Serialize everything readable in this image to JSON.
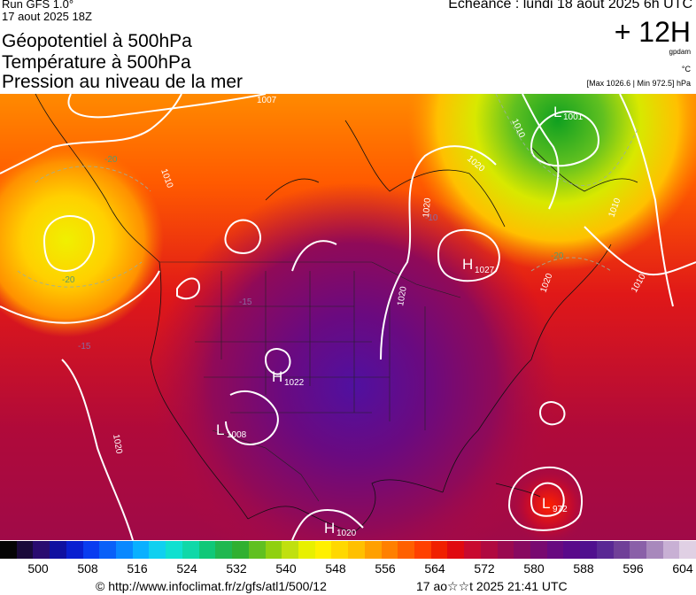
{
  "header": {
    "run": "Run GFS 1.0°",
    "run_date": "17 aout 2025 18Z",
    "title_line1": "Géopotentiel à 500hPa",
    "title_line2": "Température à 500hPa",
    "title_line3": "Pression au niveau de la mer",
    "echeance": "Echéance : lundi 18 aout 2025 6h UTC",
    "lead_time": "+ 12H",
    "unit_gpdam": "gpdam",
    "unit_temp": "°C",
    "max_min": "[Max 1026.6 | Min 972.5] hPa"
  },
  "colorbar": {
    "ticks": [
      "500",
      "508",
      "516",
      "524",
      "532",
      "540",
      "548",
      "556",
      "564",
      "572",
      "580",
      "588",
      "596",
      "604"
    ],
    "colors": [
      "#050505",
      "#1a0a3a",
      "#2a0c70",
      "#1010a0",
      "#0a1fd0",
      "#0a3cf0",
      "#0a60f8",
      "#0a88ff",
      "#0ab0ff",
      "#10d0f0",
      "#10e0d0",
      "#10d8a8",
      "#10c878",
      "#20b850",
      "#30b030",
      "#60c020",
      "#90d010",
      "#c0e010",
      "#e8f000",
      "#fff000",
      "#ffd800",
      "#ffc000",
      "#ffa000",
      "#ff8000",
      "#ff6000",
      "#ff4000",
      "#f02000",
      "#e00a10",
      "#c80a30",
      "#b00a40",
      "#9a0a50",
      "#880a60",
      "#780a70",
      "#680a80",
      "#5a0a8a",
      "#50108e",
      "#5a2894",
      "#704098",
      "#8a60a8",
      "#a888bc",
      "#c8b0d4",
      "#e0d0e4"
    ]
  },
  "map_labels": {
    "highs": [
      {
        "letter": "H",
        "value": "1027"
      },
      {
        "letter": "H",
        "value": "1022"
      },
      {
        "letter": "H",
        "value": "1020"
      }
    ],
    "lows": [
      {
        "letter": "L",
        "value": "1001"
      },
      {
        "letter": "L",
        "value": "1008"
      },
      {
        "letter": "L",
        "value": "972"
      }
    ],
    "isobars": [
      "1007",
      "1010",
      "1020",
      "1010",
      "1020",
      "1010",
      "1020",
      "1010",
      "1020",
      "1020"
    ],
    "isotherms": [
      "-20",
      "-20",
      "-15",
      "-15",
      "-10",
      "-20"
    ]
  },
  "footer": {
    "source": "© http://www.infoclimat.fr/z/gfs/atl1/500/12",
    "generated": "17 ao☆☆t 2025 21:41 UTC"
  }
}
